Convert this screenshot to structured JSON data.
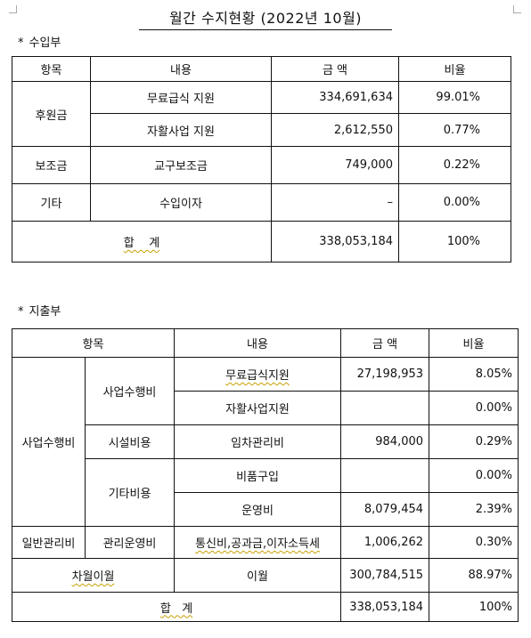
{
  "title": "월간 수지현황 (2022년 10월)",
  "income": {
    "section_label": "수입부",
    "headers": [
      "항목",
      "내용",
      "금 액",
      "비율"
    ],
    "groups": {
      "donation": "후원금",
      "subsidy": "보조금",
      "other": "기타"
    },
    "rows": [
      {
        "content": "무료급식 지원",
        "amount": "334,691,634",
        "ratio": "99.01%"
      },
      {
        "content": "자활사업 지원",
        "amount": "2,612,550",
        "ratio": "0.77%"
      },
      {
        "content": "교구보조금",
        "amount": "749,000",
        "ratio": "0.22%"
      },
      {
        "content": "수입이자",
        "amount": "–",
        "ratio": "0.00%"
      }
    ],
    "total": {
      "label": "합    계",
      "amount": "338,053,184",
      "ratio": "100%"
    }
  },
  "expense": {
    "section_label": "지출부",
    "headers": [
      "항목",
      "내용",
      "금 액",
      "비율"
    ],
    "groups": {
      "business": "사업수행비",
      "general": "일반관리비",
      "sub_business": "사업수행비",
      "facility": "시설비용",
      "misc": "기타비용",
      "admin": "관리운영비"
    },
    "rows": [
      {
        "content": "무료급식지원",
        "amount": "27,198,953",
        "ratio": "8.05%"
      },
      {
        "content": "자활사업지원",
        "amount": "",
        "ratio": "0.00%"
      },
      {
        "content": "임차관리비",
        "amount": "984,000",
        "ratio": "0.29%"
      },
      {
        "content": "비품구입",
        "amount": "",
        "ratio": "0.00%"
      },
      {
        "content": "운영비",
        "amount": "8,079,454",
        "ratio": "2.39%"
      },
      {
        "content": "통신비,공과금,이자소득세",
        "amount": "1,006,262",
        "ratio": "0.30%"
      }
    ],
    "carryover": {
      "label": "차월이월",
      "content": "이월",
      "amount": "300,784,515",
      "ratio": "88.97%"
    },
    "total": {
      "label": "합   계",
      "amount": "338,053,184",
      "ratio": "100%"
    }
  }
}
